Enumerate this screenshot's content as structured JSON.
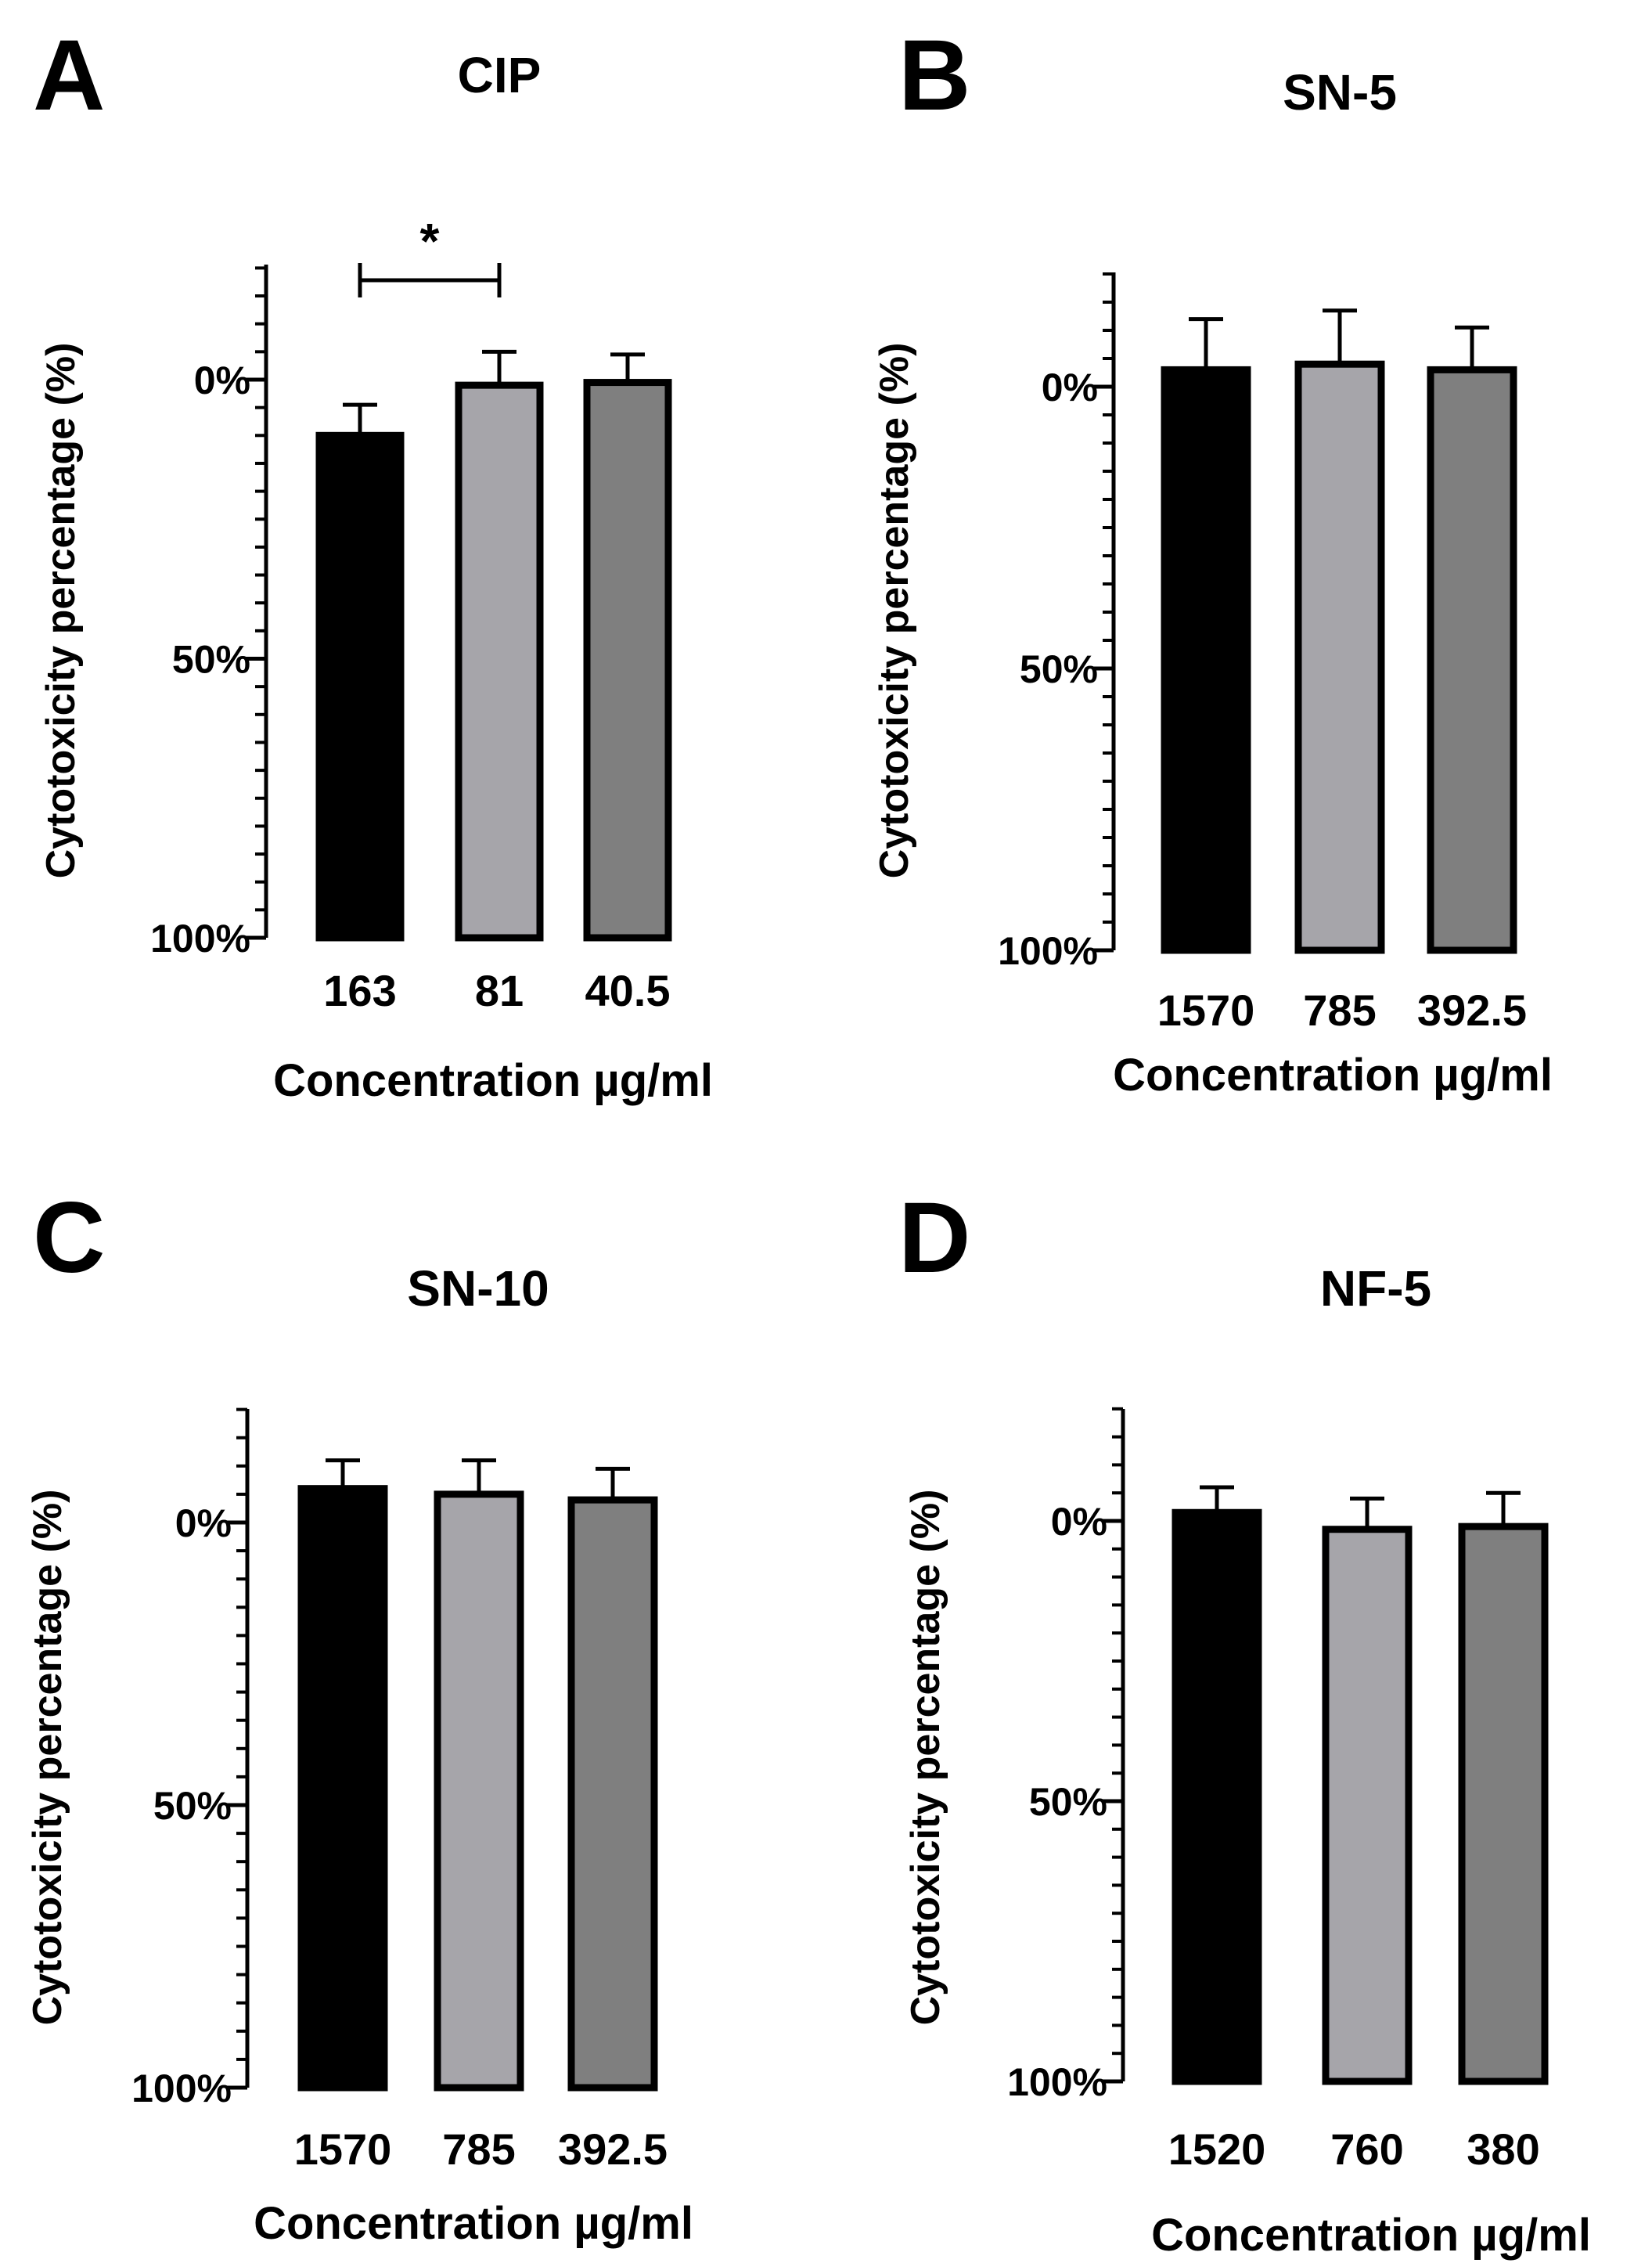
{
  "ylim": [
    -20,
    100
  ],
  "y_ticks": [
    {
      "value": 0,
      "label": "0%"
    },
    {
      "value": 50,
      "label": "50%"
    },
    {
      "value": 100,
      "label": "100%"
    }
  ],
  "ylabel": "Cytotoxicity percentage (%)",
  "xlabel": "Concentration µg/ml",
  "bar_colors": [
    "#000000",
    "#a6a5aa",
    "#7f7f7f"
  ],
  "chart_data": [
    {
      "type": "bar",
      "panel": "A",
      "title": "CIP",
      "xlabel": "Concentration µg/ml",
      "ylabel": "Cytotoxicity percentage (%)",
      "ylim": [
        -20,
        100
      ],
      "y_direction": "inverted",
      "categories": [
        "163",
        "81",
        "40.5"
      ],
      "values": [
        10,
        1,
        0.5
      ],
      "errors": [
        5.5,
        6,
        5
      ],
      "significance": [
        {
          "from": 0,
          "to": 1,
          "label": "*"
        }
      ]
    },
    {
      "type": "bar",
      "panel": "B",
      "title": "SN-5",
      "xlabel": "Concentration µg/ml",
      "ylabel": "Cytotoxicity percentage (%)",
      "ylim": [
        -20,
        100
      ],
      "y_direction": "inverted",
      "categories": [
        "1570",
        "785",
        "392.5"
      ],
      "values": [
        -3,
        -4,
        -3
      ],
      "errors": [
        9,
        9.5,
        7.5
      ],
      "significance": []
    },
    {
      "type": "bar",
      "panel": "C",
      "title": "SN-10",
      "xlabel": "Concentration µg/ml",
      "ylabel": "Cytotoxicity percentage (%)",
      "ylim": [
        -20,
        100
      ],
      "y_direction": "inverted",
      "categories": [
        "1570",
        "785",
        "392.5"
      ],
      "values": [
        -6,
        -5,
        -4
      ],
      "errors": [
        5,
        6,
        5.5
      ],
      "significance": []
    },
    {
      "type": "bar",
      "panel": "D",
      "title": "NF-5",
      "xlabel": "Concentration µg/ml",
      "ylabel": "Cytotoxicity percentage (%)",
      "ylim": [
        -20,
        100
      ],
      "y_direction": "inverted",
      "categories": [
        "1520",
        "760",
        "380"
      ],
      "values": [
        -1.5,
        1.5,
        1
      ],
      "errors": [
        4.5,
        5.5,
        6
      ],
      "significance": []
    }
  ]
}
